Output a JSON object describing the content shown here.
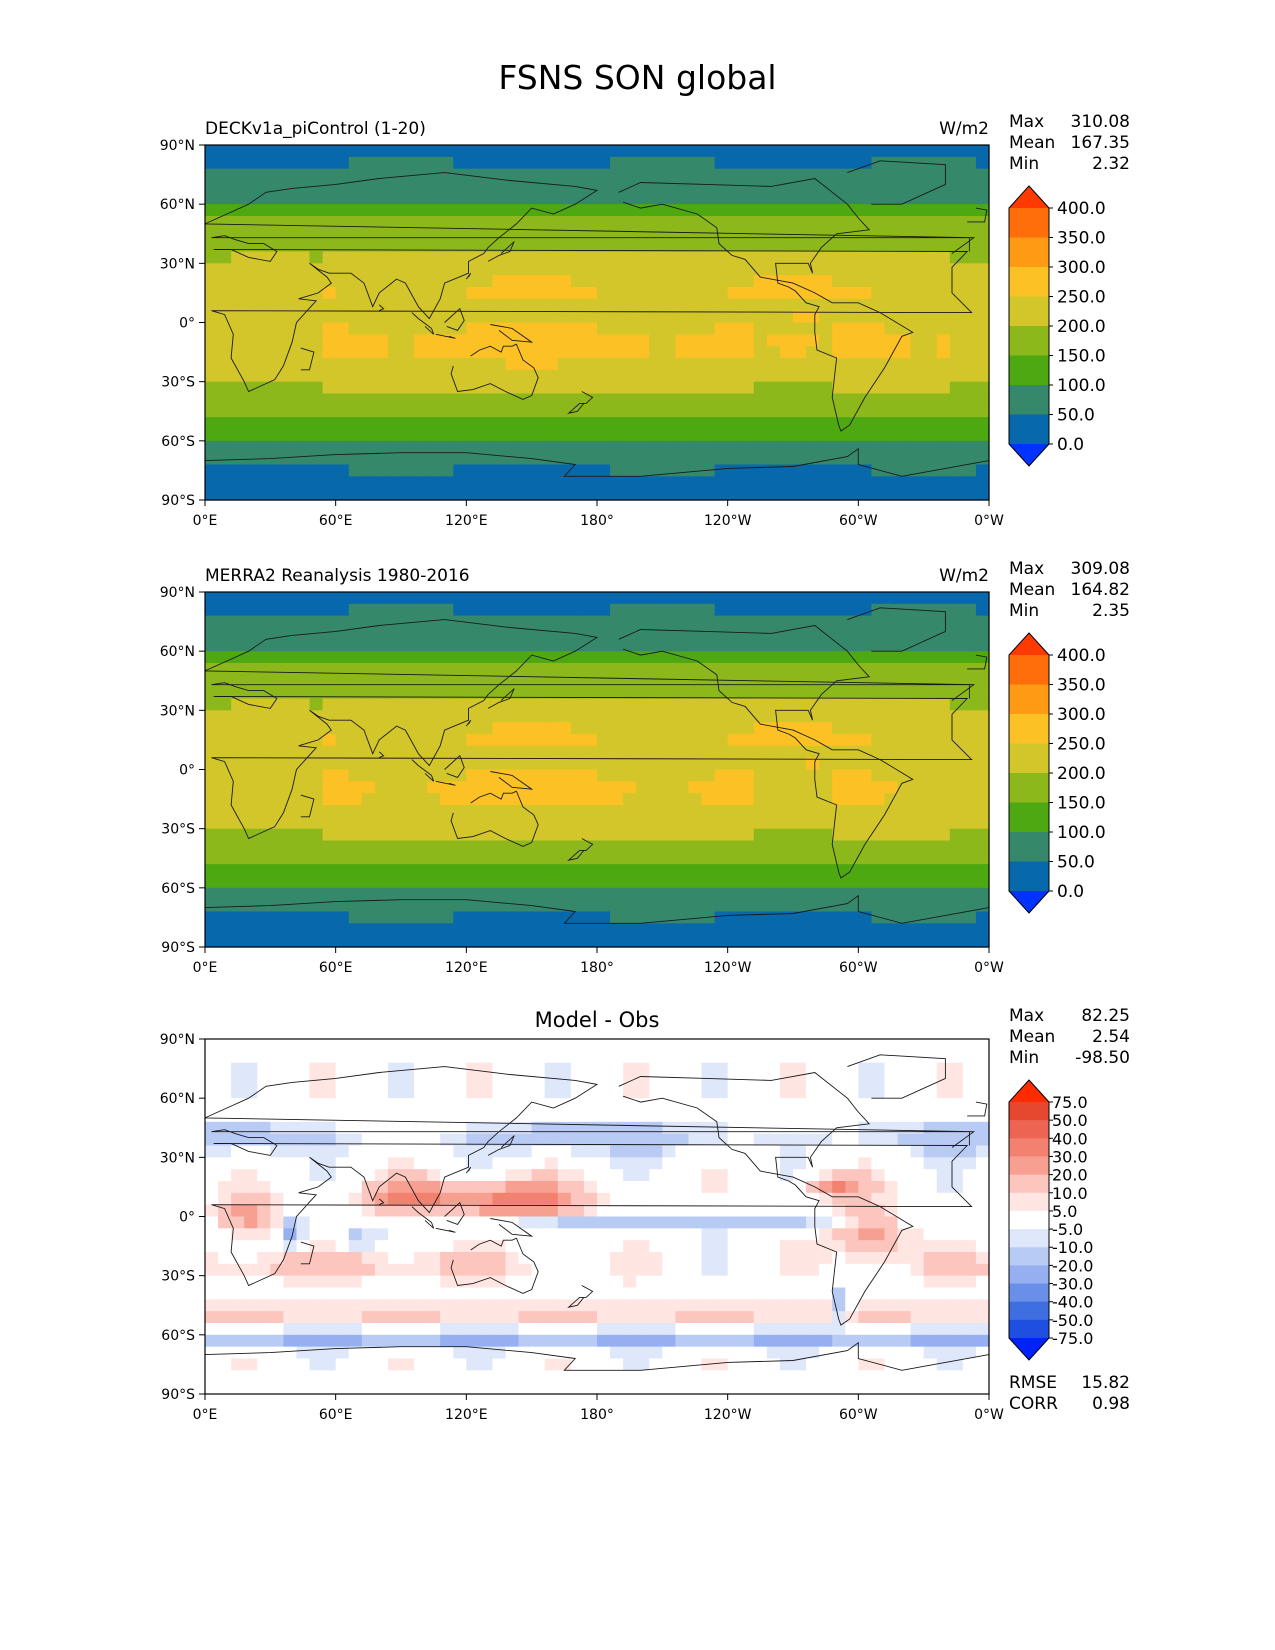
{
  "figure": {
    "title": "FSNS SON global"
  },
  "axes": {
    "lat_ticks": [
      "90°N",
      "60°N",
      "30°N",
      "0°",
      "30°S",
      "60°S",
      "90°S"
    ],
    "lon_ticks": [
      "0°E",
      "60°E",
      "120°E",
      "180°",
      "120°W",
      "60°W",
      "0°W"
    ]
  },
  "colors": {
    "mean_levels": [
      "#0033ff",
      "#0868ac",
      "#35886a",
      "#4ea811",
      "#8cb81b",
      "#d2c62b",
      "#fcc124",
      "#fe9a14",
      "#ff6e0b",
      "#ff3a00"
    ],
    "diff_levels": [
      "#0022ff",
      "#1e4fe0",
      "#3e6ee0",
      "#6a8fe8",
      "#95aff0",
      "#b8cbf5",
      "#dfe7fb",
      "#ffffff",
      "#ffe6e3",
      "#fcc5bd",
      "#f7a091",
      "#f28170",
      "#ed6552",
      "#e5472f",
      "#ff2a00"
    ],
    "coast": "#1a1a1a"
  },
  "chart_data": [
    {
      "type": "heatmap",
      "name": "model",
      "title": "",
      "left_title": "DECKv1a_piControl (1-20)",
      "units": "W/m2",
      "stats": [
        {
          "label": "Max",
          "value": "310.08"
        },
        {
          "label": "Mean",
          "value": "167.35"
        },
        {
          "label": "Min",
          "value": "2.32"
        }
      ],
      "colorbar": {
        "levels": [
          0,
          50,
          100,
          150,
          200,
          250,
          300,
          350,
          400
        ],
        "tick_labels": [
          "0.0",
          "50.0",
          "100.0",
          "150.0",
          "200.0",
          "250.0",
          "300.0",
          "350.0",
          "400.0"
        ],
        "extend": "both"
      },
      "xlim": [
        0,
        360
      ],
      "ylim": [
        -90,
        90
      ],
      "extra_stats": []
    },
    {
      "type": "heatmap",
      "name": "obs",
      "title": "",
      "left_title": "MERRA2 Reanalysis 1980-2016",
      "units": "W/m2",
      "stats": [
        {
          "label": "Max",
          "value": "309.08"
        },
        {
          "label": "Mean",
          "value": "164.82"
        },
        {
          "label": "Min",
          "value": "2.35"
        }
      ],
      "colorbar": {
        "levels": [
          0,
          50,
          100,
          150,
          200,
          250,
          300,
          350,
          400
        ],
        "tick_labels": [
          "0.0",
          "50.0",
          "100.0",
          "150.0",
          "200.0",
          "250.0",
          "300.0",
          "350.0",
          "400.0"
        ],
        "extend": "both"
      },
      "xlim": [
        0,
        360
      ],
      "ylim": [
        -90,
        90
      ],
      "extra_stats": []
    },
    {
      "type": "heatmap",
      "name": "diff",
      "title": "Model - Obs",
      "left_title": "",
      "units": "",
      "stats": [
        {
          "label": "Max",
          "value": "82.25"
        },
        {
          "label": "Mean",
          "value": "2.54"
        },
        {
          "label": "Min",
          "value": "-98.50"
        }
      ],
      "colorbar": {
        "levels": [
          -75,
          -50,
          -40,
          -30,
          -20,
          -10,
          -5,
          5,
          10,
          20,
          30,
          40,
          50,
          75
        ],
        "tick_labels": [
          "-75.0",
          "-50.0",
          "-40.0",
          "-30.0",
          "-20.0",
          "-10.0",
          "-5.0",
          "5.0",
          "10.0",
          "20.0",
          "30.0",
          "40.0",
          "50.0",
          "75.0"
        ],
        "extend": "both"
      },
      "xlim": [
        0,
        360
      ],
      "ylim": [
        -90,
        90
      ],
      "extra_stats": [
        {
          "label": "RMSE",
          "value": "15.82"
        },
        {
          "label": "CORR",
          "value": "0.98"
        }
      ]
    }
  ]
}
